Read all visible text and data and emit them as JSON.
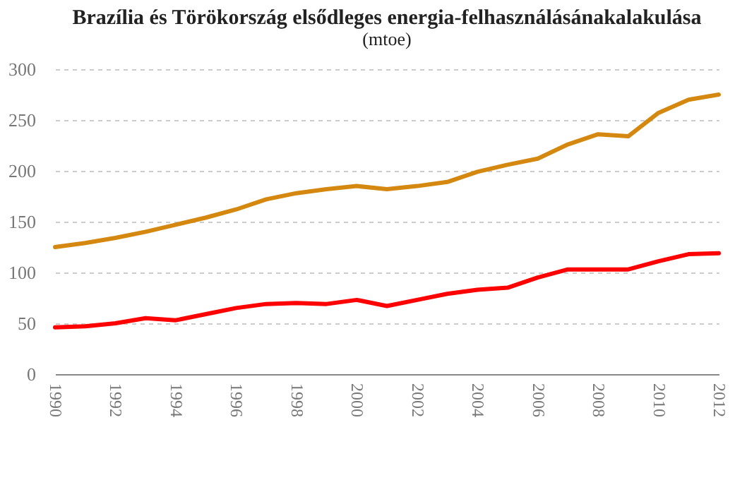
{
  "chart_data": {
    "type": "line",
    "title": "Brazília és Törökország elsődleges energia-felhasználásánakalakulása",
    "subtitle": "(mtoe)",
    "x": [
      1990,
      1991,
      1992,
      1993,
      1994,
      1995,
      1996,
      1997,
      1998,
      1999,
      2000,
      2001,
      2002,
      2003,
      2004,
      2005,
      2006,
      2007,
      2008,
      2009,
      2010,
      2011,
      2012
    ],
    "series": [
      {
        "color": "#d4880f",
        "values": [
          125,
          129,
          134,
          140,
          147,
          154,
          162,
          172,
          178,
          182,
          185,
          182,
          185,
          189,
          199,
          206,
          212,
          226,
          236,
          234,
          257,
          270,
          275
        ]
      },
      {
        "color": "#ff0000",
        "values": [
          46,
          47,
          50,
          55,
          53,
          59,
          65,
          69,
          70,
          69,
          73,
          67,
          73,
          79,
          83,
          85,
          95,
          103,
          103,
          103,
          111,
          118,
          119
        ]
      }
    ],
    "xlim": [
      1990,
      2012
    ],
    "xticks": [
      1990,
      1992,
      1994,
      1996,
      1998,
      2000,
      2002,
      2004,
      2006,
      2008,
      2010,
      2012
    ],
    "ylim": [
      0,
      300
    ],
    "yticks": [
      0,
      50,
      100,
      150,
      200,
      250,
      300
    ],
    "grid": "y",
    "legend": false,
    "marker": "none",
    "line_style": "solid"
  }
}
